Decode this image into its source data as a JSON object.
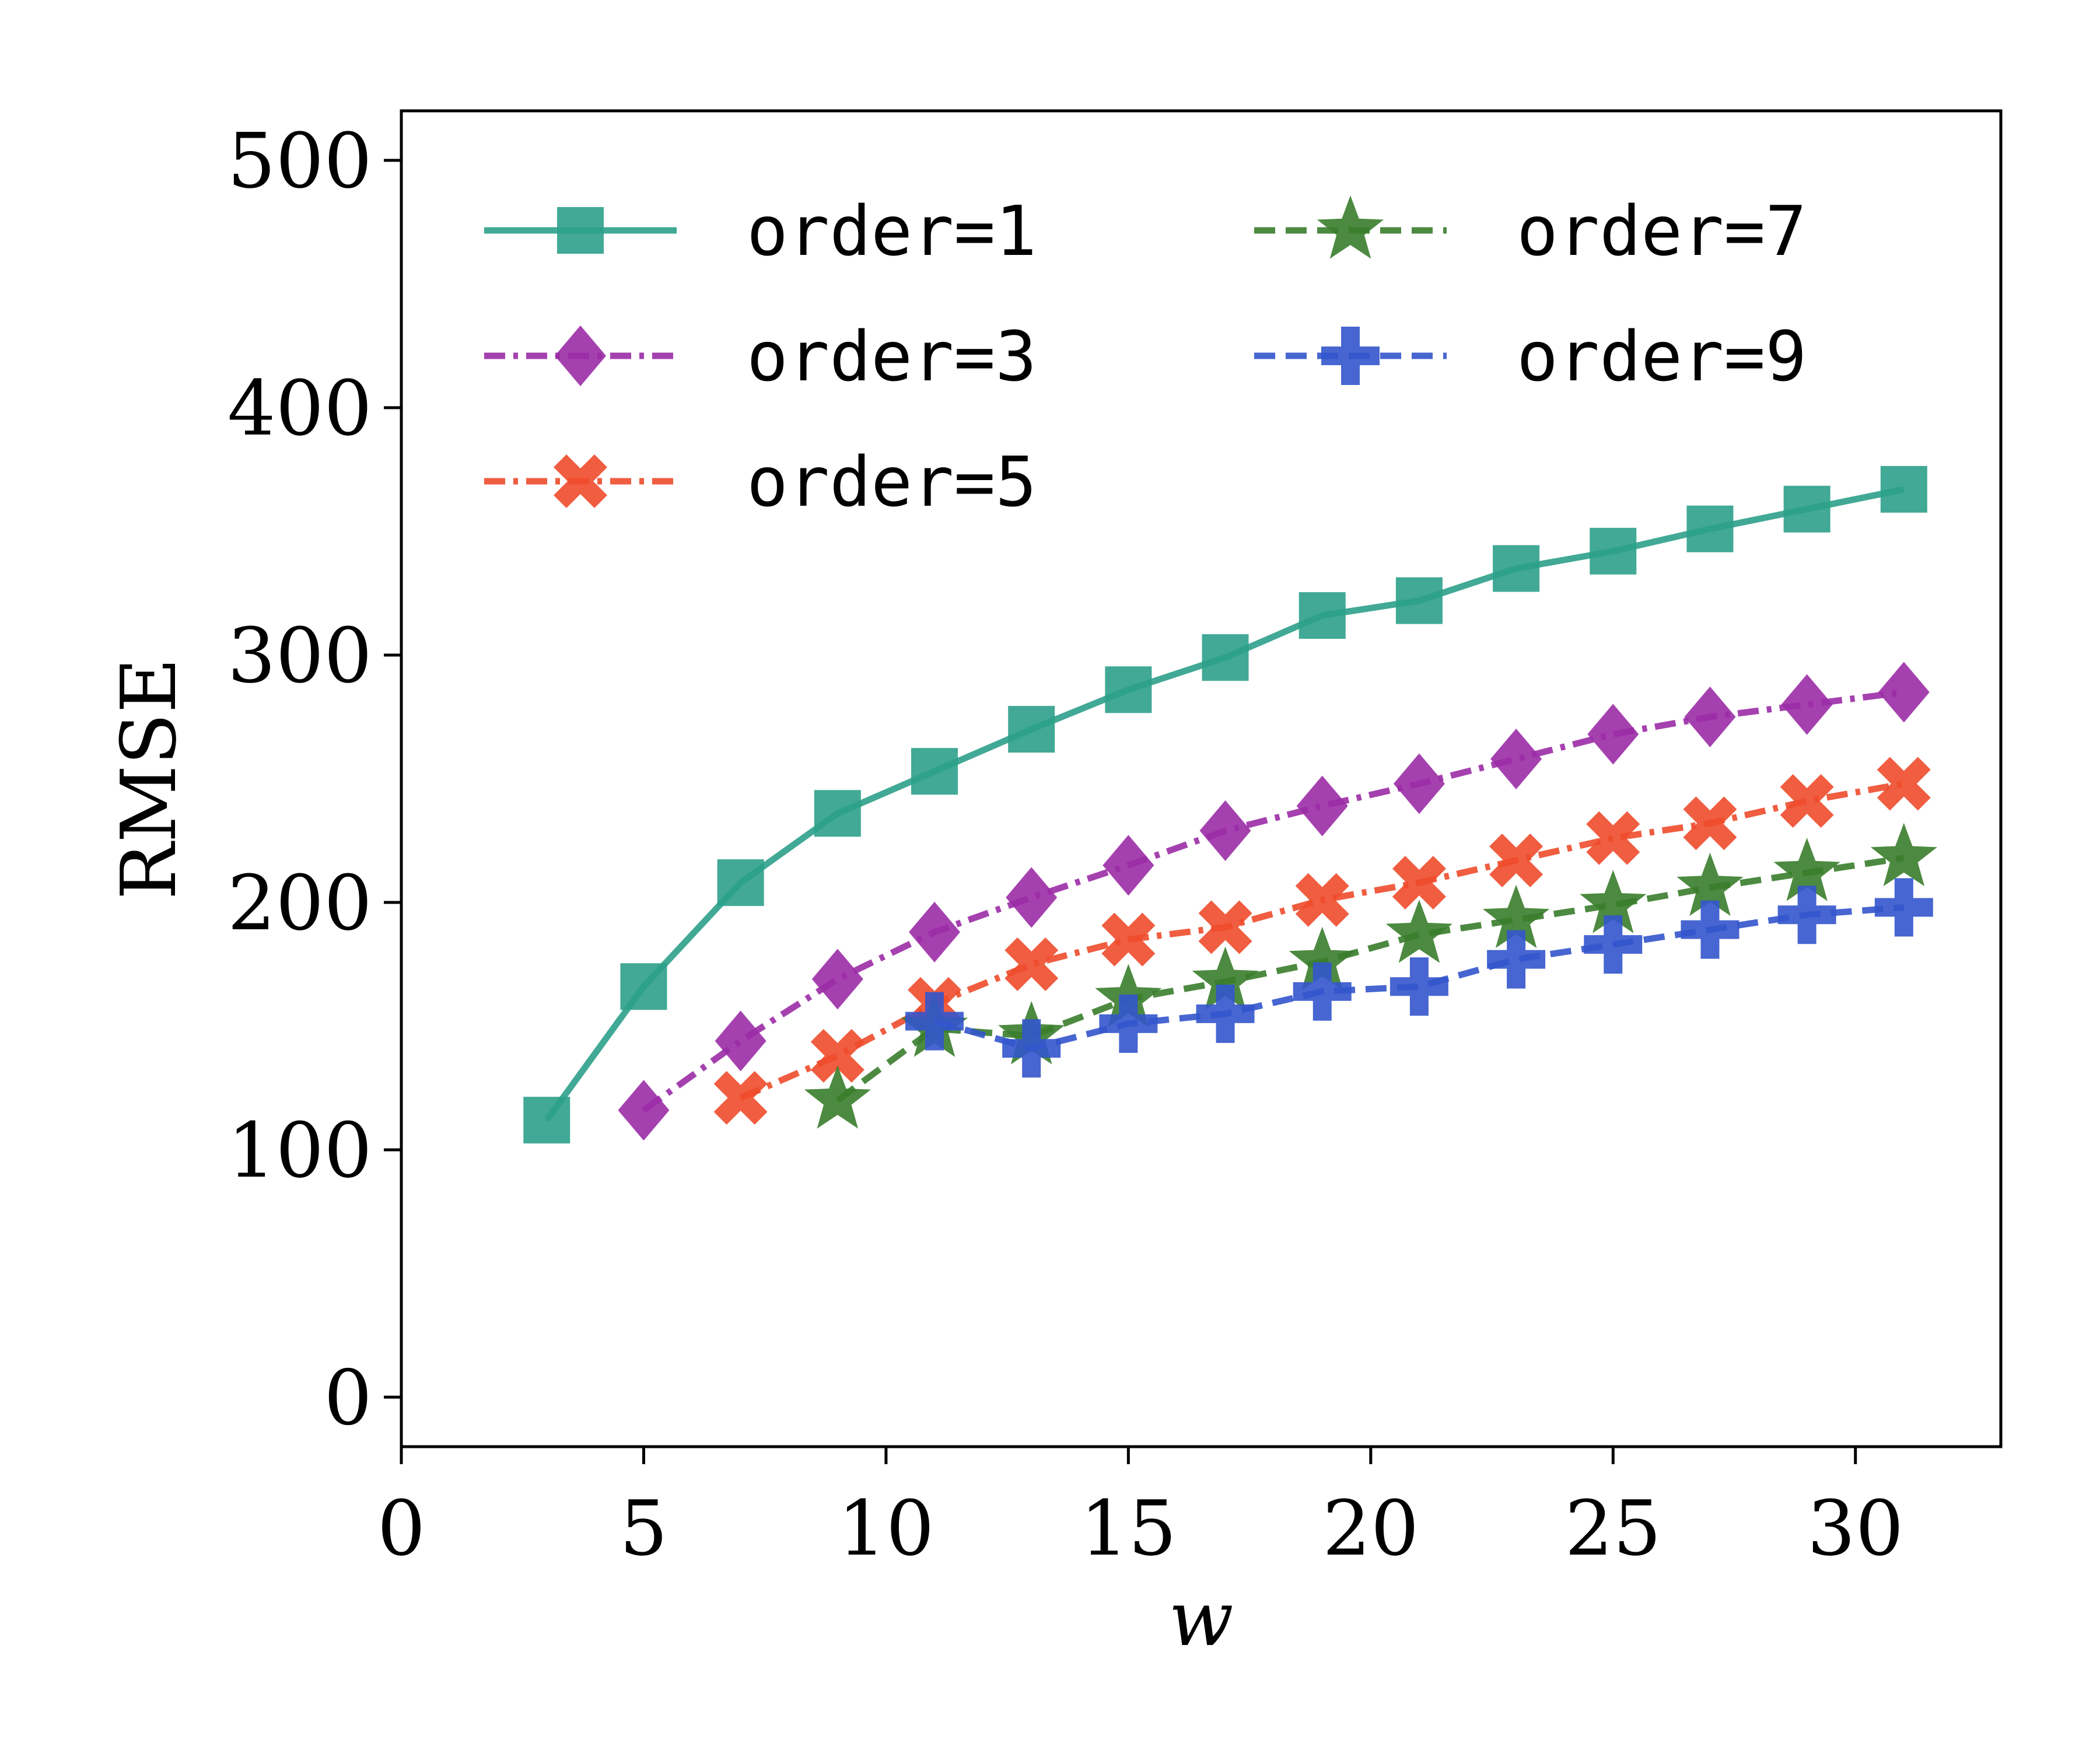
{
  "chart_data": {
    "type": "line",
    "xlabel": "w",
    "ylabel": "RMSE",
    "xlim": [
      0,
      33
    ],
    "ylim": [
      -20,
      520
    ],
    "xticks": [
      0,
      5,
      10,
      15,
      20,
      25,
      30
    ],
    "yticks": [
      0,
      100,
      200,
      300,
      400,
      500
    ],
    "grid": false,
    "legend": {
      "placement": "top-left",
      "columns": 2
    },
    "series": [
      {
        "name": "order=1",
        "color": "#2ca089",
        "marker": "square",
        "linestyle": "solid",
        "x": [
          3,
          5,
          7,
          9,
          11,
          13,
          15,
          17,
          19,
          21,
          23,
          25,
          27,
          29,
          31
        ],
        "y": [
          112,
          166,
          208,
          236,
          253,
          270,
          286,
          299,
          316,
          322,
          335,
          342,
          351,
          359,
          367
        ]
      },
      {
        "name": "order=3",
        "color": "#9b2ca6",
        "marker": "diamond",
        "linestyle": "dashdot",
        "x": [
          5,
          7,
          9,
          11,
          13,
          15,
          17,
          19,
          21,
          23,
          25,
          27,
          29,
          31
        ],
        "y": [
          116,
          144,
          169,
          188,
          202,
          215,
          229,
          239,
          248,
          258,
          268,
          275,
          280,
          285
        ]
      },
      {
        "name": "order=5",
        "color": "#ee4b2b",
        "marker": "x",
        "linestyle": "dashdot",
        "x": [
          7,
          9,
          11,
          13,
          15,
          17,
          19,
          21,
          23,
          25,
          27,
          29,
          31
        ],
        "y": [
          121,
          138,
          159,
          175,
          185,
          190,
          201,
          208,
          217,
          226,
          232,
          241,
          248
        ]
      },
      {
        "name": "order=7",
        "color": "#3a7d2c",
        "marker": "star",
        "linestyle": "dashed",
        "x": [
          9,
          11,
          13,
          15,
          17,
          19,
          21,
          23,
          25,
          27,
          29,
          31
        ],
        "y": [
          120,
          149,
          146,
          161,
          168,
          176,
          187,
          193,
          199,
          206,
          212,
          218
        ]
      },
      {
        "name": "order=9",
        "color": "#3355cc",
        "marker": "plus",
        "linestyle": "dashed",
        "x": [
          11,
          13,
          15,
          17,
          19,
          21,
          23,
          25,
          27,
          29,
          31
        ],
        "y": [
          152,
          141,
          151,
          155,
          164,
          166,
          177,
          183,
          189,
          195,
          198
        ]
      }
    ]
  }
}
